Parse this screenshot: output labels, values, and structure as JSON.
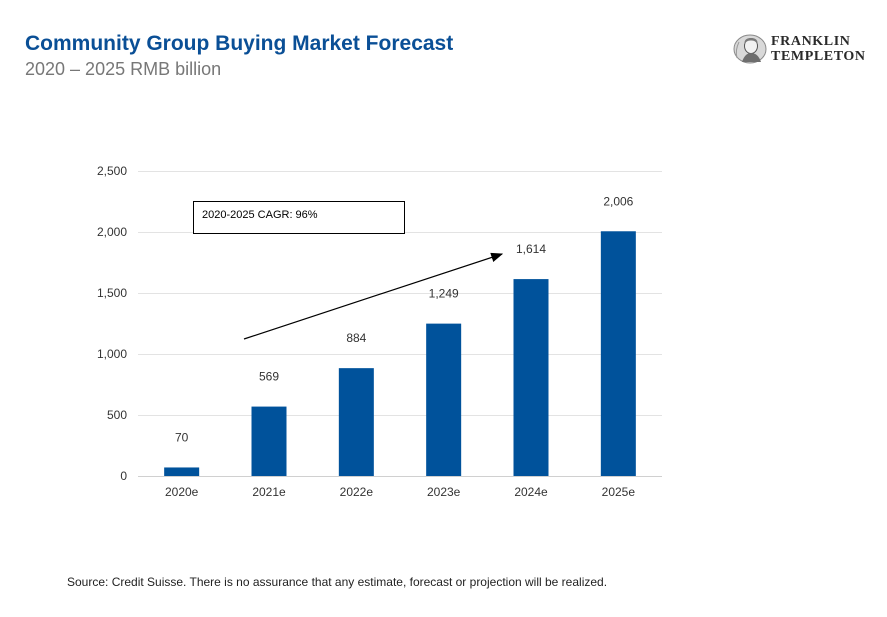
{
  "header": {
    "title": "Community Group Buying Market Forecast",
    "subtitle": "2020 – 2025 RMB billion"
  },
  "logo": {
    "line1": "FRANKLIN",
    "line2": "TEMPLETON",
    "icon": "benjamin-franklin-portrait-icon"
  },
  "colors": {
    "title": "#0a4f96",
    "bar": "#00529b",
    "subtitle": "#777777"
  },
  "chart_data": {
    "type": "bar",
    "categories": [
      "2020e",
      "2021e",
      "2022e",
      "2023e",
      "2024e",
      "2025e"
    ],
    "values": [
      70,
      569,
      884,
      1249,
      1614,
      2006
    ],
    "value_labels": [
      "70",
      "569",
      "884",
      "1,249",
      "1,614",
      "2,006"
    ],
    "title": "",
    "xlabel": "",
    "ylabel": "",
    "ylim": [
      0,
      2500
    ],
    "yticks": [
      0,
      500,
      1000,
      1500,
      2000,
      2500
    ],
    "ytick_labels": [
      "0",
      "500",
      "1,000",
      "1,500",
      "2,000",
      "2,500"
    ],
    "grid": true,
    "annotation": "2020-2025 CAGR: 96%"
  },
  "footer": {
    "source": "Source: Credit Suisse. There is no assurance that any estimate, forecast or projection will be realized."
  }
}
